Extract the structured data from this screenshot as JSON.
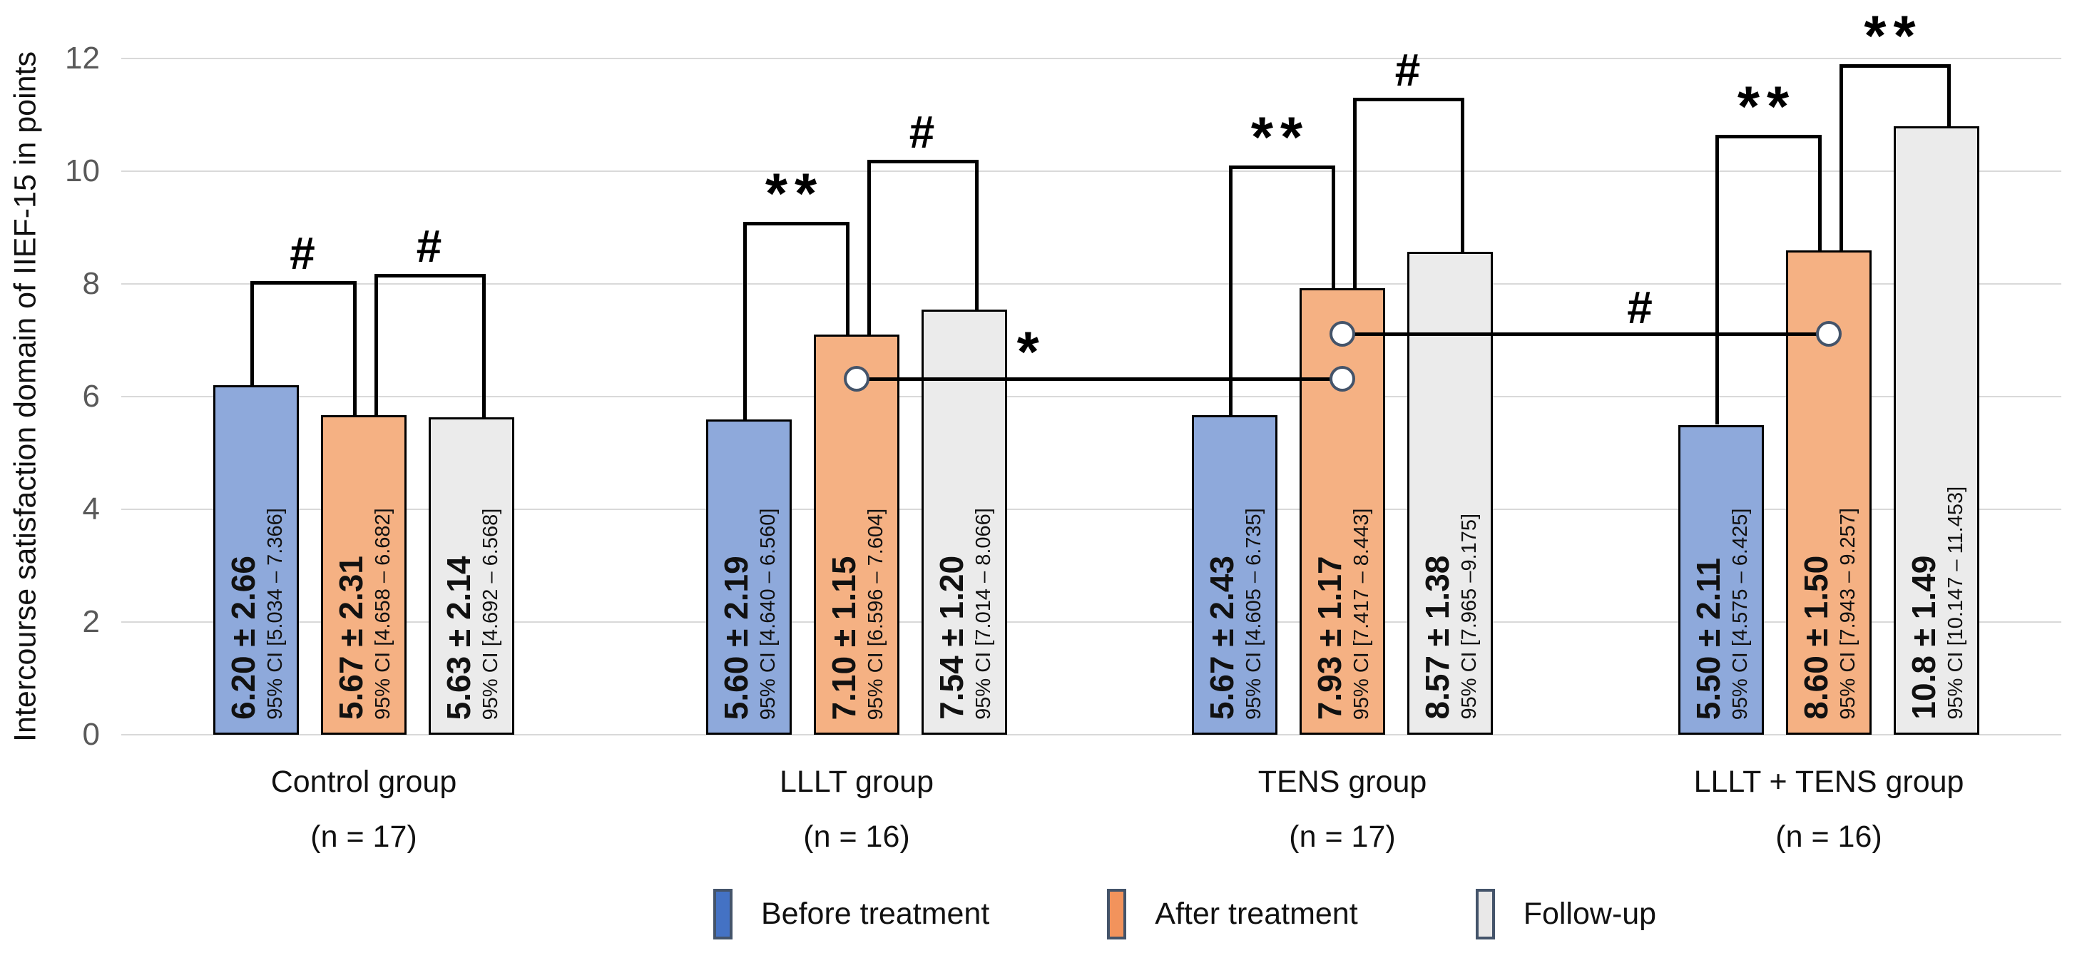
{
  "chart_data": {
    "type": "bar",
    "title": "",
    "xlabel": "",
    "ylabel": "Intercourse satisfaction domain of IIEF-15 in points",
    "ylim": [
      0,
      12
    ],
    "yticks": [
      0,
      2,
      4,
      6,
      8,
      10,
      12
    ],
    "grid": "horizontal",
    "legend_position": "bottom",
    "categories": [
      "Control group (n = 17)",
      "LLLT group (n = 16)",
      "TENS group (n = 17)",
      "LLLT + TENS group (n = 16)"
    ],
    "series": [
      {
        "name": "Before treatment",
        "color": "#8EA9DB",
        "values": [
          6.2,
          5.6,
          5.67,
          5.5
        ],
        "labels": [
          "6.20 ± 2.66",
          "5.60 ± 2.19",
          "5.67 ± 2.43",
          "5.50 ± 2.11"
        ],
        "ci": [
          "95% CI [5.034 – 7.366]",
          "95% CI [4.640 – 6.560]",
          "95% CI [4.605 – 6.735]",
          "95% CI [4.575 – 6.425]"
        ]
      },
      {
        "name": "After treatment",
        "color": "#F5B183",
        "values": [
          5.67,
          7.1,
          7.93,
          8.6
        ],
        "labels": [
          "5.67 ± 2.31",
          "7.10 ± 1.15",
          "7.93 ± 1.17",
          "8.60 ± 1.50"
        ],
        "ci": [
          "95% CI [4.658 – 6.682]",
          "95% CI [6.596 – 7.604]",
          "95% CI [7.417 – 8.443]",
          "95% CI [7.943 – 9.257]"
        ]
      },
      {
        "name": "Follow-up",
        "color": "#EBEBEB",
        "values": [
          5.63,
          7.54,
          8.57,
          10.8
        ],
        "labels": [
          "5.63 ± 2.14",
          "7.54 ± 1.20",
          "8.57 ± 1.38",
          "10.8 ± 1.49"
        ],
        "ci": [
          "95% CI [4.692 – 6.568]",
          "95% CI [7.014 – 8.066]",
          "95% CI [7.965 –9.175]",
          "95% CI [10.147 – 11.453]"
        ]
      }
    ],
    "annotations": {
      "brackets": [
        {
          "group": 0,
          "bars": [
            0,
            1
          ],
          "top": 8.05,
          "symbol": "#"
        },
        {
          "group": 0,
          "bars": [
            1,
            2
          ],
          "top": 8.18,
          "symbol": "#"
        },
        {
          "group": 1,
          "bars": [
            0,
            1
          ],
          "top": 9.1,
          "symbol": "**"
        },
        {
          "group": 1,
          "bars": [
            1,
            2
          ],
          "top": 10.2,
          "symbol": "#"
        },
        {
          "group": 2,
          "bars": [
            0,
            1
          ],
          "top": 10.1,
          "symbol": "**"
        },
        {
          "group": 2,
          "bars": [
            1,
            2
          ],
          "top": 11.3,
          "symbol": "#"
        },
        {
          "group": 3,
          "bars": [
            0,
            1
          ],
          "top": 10.65,
          "symbol": "**"
        },
        {
          "group": 3,
          "bars": [
            1,
            2
          ],
          "top": 11.9,
          "symbol": "**"
        }
      ],
      "connectors": [
        {
          "groups": [
            1,
            2
          ],
          "series": 1,
          "y": 6.32,
          "symbol": "*",
          "symbol_frac": 0.36
        },
        {
          "groups": [
            2,
            3
          ],
          "series": 1,
          "y": 7.12,
          "symbol": "#",
          "symbol_frac": 0.61
        }
      ]
    }
  },
  "x_labels": [
    {
      "line1": "Control group",
      "line2": "(n = 17)"
    },
    {
      "line1": "LLLT group",
      "line2": "(n = 16)"
    },
    {
      "line1": "TENS group",
      "line2": "(n = 17)"
    },
    {
      "line1": "LLLT + TENS group",
      "line2": "(n = 16)"
    }
  ],
  "legend": {
    "items": [
      {
        "label": "Before treatment",
        "color": "#4472C4"
      },
      {
        "label": "After treatment",
        "color": "#F2935C"
      },
      {
        "label": "Follow-up",
        "color": "#E9E8E8"
      }
    ],
    "swatch_border_color": "#44546A"
  },
  "colors": {
    "bar_border": "#000000",
    "gridline": "#D9D9D9",
    "tick_label": "#595959",
    "significance": "#000000",
    "connector_marker_fill": "#FFFFFF",
    "connector_marker_border": "#44546A"
  }
}
